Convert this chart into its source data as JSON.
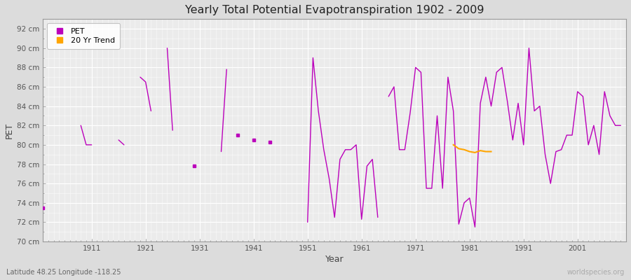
{
  "title": "Yearly Total Potential Evapotranspiration 1902 - 2009",
  "xlabel": "Year",
  "ylabel": "PET",
  "subtitle": "Latitude 48.25 Longitude -118.25",
  "watermark": "worldspecies.org",
  "ylim": [
    70,
    93
  ],
  "xlim": [
    1902,
    2010
  ],
  "yticks": [
    70,
    72,
    74,
    76,
    78,
    80,
    82,
    84,
    86,
    88,
    90,
    92
  ],
  "ytick_labels": [
    "70 cm",
    "72 cm",
    "74 cm",
    "76 cm",
    "78 cm",
    "80 cm",
    "82 cm",
    "84 cm",
    "86 cm",
    "88 cm",
    "90 cm",
    "92 cm"
  ],
  "xticks": [
    1911,
    1921,
    1931,
    1941,
    1951,
    1961,
    1971,
    1981,
    1991,
    2001
  ],
  "pet_color": "#BB00BB",
  "trend_color": "#FFA500",
  "figure_bg": "#DCDCDC",
  "plot_bg": "#EBEBEB",
  "grid_major_color": "#FFFFFF",
  "grid_minor_color": "#FFFFFF",
  "pet_linewidth": 1.0,
  "trend_linewidth": 1.5,
  "pet_data": {
    "1902": 73.5,
    "1909": 82.0,
    "1910": 80.0,
    "1911": 80.0,
    "1916": 80.5,
    "1917": 80.0,
    "1920": 87.0,
    "1921": 86.5,
    "1922": 83.5,
    "1925": 90.0,
    "1926": 81.5,
    "1930": 77.8,
    "1935": 79.3,
    "1936": 87.8,
    "1938": 81.0,
    "1941": 80.5,
    "1944": 80.3,
    "1951": 72.0,
    "1952": 89.0,
    "1953": 83.5,
    "1954": 79.5,
    "1955": 76.5,
    "1956": 72.5,
    "1957": 78.5,
    "1958": 79.5,
    "1959": 79.5,
    "1960": 80.0,
    "1961": 72.3,
    "1962": 77.8,
    "1963": 78.5,
    "1964": 72.5,
    "1966": 85.0,
    "1967": 86.0,
    "1968": 79.5,
    "1969": 79.5,
    "1970": 83.3,
    "1971": 88.0,
    "1972": 87.5,
    "1973": 75.5,
    "1974": 75.5,
    "1975": 83.0,
    "1976": 75.5,
    "1977": 87.0,
    "1978": 83.5,
    "1979": 71.8,
    "1980": 74.0,
    "1981": 74.5,
    "1982": 71.5,
    "1983": 84.3,
    "1984": 87.0,
    "1985": 84.0,
    "1986": 87.5,
    "1987": 88.0,
    "1988": 84.5,
    "1989": 80.5,
    "1990": 84.3,
    "1991": 80.0,
    "1992": 90.0,
    "1993": 83.5,
    "1994": 84.0,
    "1995": 79.0,
    "1996": 76.0,
    "1997": 79.3,
    "1998": 79.5,
    "1999": 81.0,
    "2000": 81.0,
    "2001": 85.5,
    "2002": 85.0,
    "2003": 80.0,
    "2004": 82.0,
    "2005": 79.0,
    "2006": 85.5,
    "2007": 83.0,
    "2008": 82.0,
    "2009": 82.0
  },
  "trend_data": {
    "1978": 80.0,
    "1979": 79.6,
    "1980": 79.5,
    "1981": 79.3,
    "1982": 79.2,
    "1983": 79.4,
    "1984": 79.3,
    "1985": 79.3
  }
}
